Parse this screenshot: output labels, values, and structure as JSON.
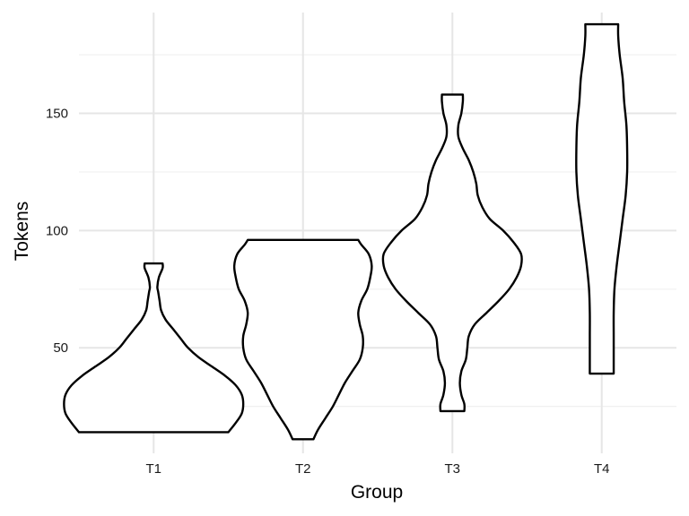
{
  "chart_data": {
    "type": "violin",
    "title": "",
    "xlabel": "Group",
    "ylabel": "Tokens",
    "categories": [
      "T1",
      "T2",
      "T3",
      "T4"
    ],
    "ylim": [
      5,
      193
    ],
    "yticks": [
      50,
      100,
      150
    ],
    "grid": true,
    "series": [
      {
        "category": "T1",
        "min": 14,
        "max": 86,
        "density_profile": [
          [
            14,
            0.5
          ],
          [
            18,
            0.55
          ],
          [
            22,
            0.59
          ],
          [
            26,
            0.6
          ],
          [
            30,
            0.59
          ],
          [
            34,
            0.55
          ],
          [
            38,
            0.48
          ],
          [
            42,
            0.39
          ],
          [
            46,
            0.3
          ],
          [
            50,
            0.23
          ],
          [
            54,
            0.18
          ],
          [
            58,
            0.13
          ],
          [
            62,
            0.08
          ],
          [
            66,
            0.05
          ],
          [
            70,
            0.04
          ],
          [
            74,
            0.03
          ],
          [
            76,
            0.025
          ],
          [
            80,
            0.035
          ],
          [
            84,
            0.06
          ],
          [
            86,
            0.06
          ]
        ]
      },
      {
        "category": "T2",
        "min": 11,
        "max": 96,
        "density_profile": [
          [
            11,
            0.07
          ],
          [
            15,
            0.1
          ],
          [
            20,
            0.15
          ],
          [
            25,
            0.2
          ],
          [
            30,
            0.24
          ],
          [
            35,
            0.28
          ],
          [
            40,
            0.33
          ],
          [
            45,
            0.38
          ],
          [
            50,
            0.4
          ],
          [
            55,
            0.4
          ],
          [
            60,
            0.38
          ],
          [
            65,
            0.37
          ],
          [
            70,
            0.39
          ],
          [
            75,
            0.43
          ],
          [
            80,
            0.45
          ],
          [
            85,
            0.46
          ],
          [
            90,
            0.44
          ],
          [
            94,
            0.39
          ],
          [
            96,
            0.37
          ]
        ]
      },
      {
        "category": "T3",
        "min": 23,
        "max": 158,
        "density_profile": [
          [
            23,
            0.08
          ],
          [
            26,
            0.08
          ],
          [
            30,
            0.06
          ],
          [
            35,
            0.05
          ],
          [
            40,
            0.06
          ],
          [
            45,
            0.09
          ],
          [
            50,
            0.1
          ],
          [
            55,
            0.11
          ],
          [
            60,
            0.15
          ],
          [
            65,
            0.23
          ],
          [
            70,
            0.31
          ],
          [
            75,
            0.38
          ],
          [
            80,
            0.43
          ],
          [
            85,
            0.46
          ],
          [
            90,
            0.46
          ],
          [
            95,
            0.41
          ],
          [
            100,
            0.34
          ],
          [
            105,
            0.25
          ],
          [
            110,
            0.2
          ],
          [
            115,
            0.17
          ],
          [
            120,
            0.16
          ],
          [
            125,
            0.14
          ],
          [
            130,
            0.11
          ],
          [
            135,
            0.07
          ],
          [
            140,
            0.04
          ],
          [
            145,
            0.04
          ],
          [
            150,
            0.06
          ],
          [
            155,
            0.07
          ],
          [
            158,
            0.07
          ]
        ]
      },
      {
        "category": "T4",
        "min": 39,
        "max": 188,
        "density_profile": [
          [
            39,
            0.08
          ],
          [
            45,
            0.08
          ],
          [
            55,
            0.08
          ],
          [
            65,
            0.08
          ],
          [
            75,
            0.085
          ],
          [
            85,
            0.1
          ],
          [
            95,
            0.12
          ],
          [
            105,
            0.14
          ],
          [
            115,
            0.16
          ],
          [
            125,
            0.17
          ],
          [
            135,
            0.17
          ],
          [
            145,
            0.165
          ],
          [
            155,
            0.15
          ],
          [
            165,
            0.14
          ],
          [
            175,
            0.12
          ],
          [
            183,
            0.11
          ],
          [
            188,
            0.11
          ]
        ]
      }
    ]
  }
}
